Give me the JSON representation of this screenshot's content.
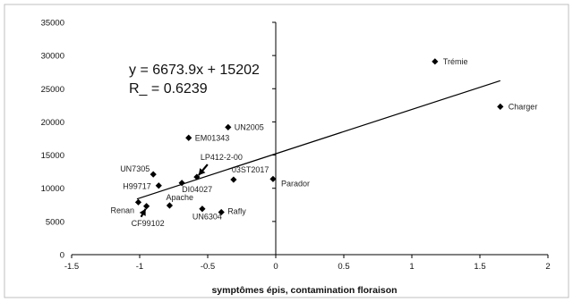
{
  "chart_data": {
    "type": "scatter",
    "title": "",
    "xlabel": "symptômes  épis, contamination floraison",
    "ylabel": "",
    "xlim": [
      -1.5,
      2
    ],
    "ylim": [
      0,
      35000
    ],
    "x_ticks": [
      "-1.5",
      "-1",
      "-0.5",
      "0",
      "0.5",
      "1",
      "1.5",
      "2"
    ],
    "y_ticks": [
      "0",
      "5000",
      "10000",
      "15000",
      "20000",
      "25000",
      "30000",
      "35000"
    ],
    "grid": false,
    "legend": "none",
    "points": [
      {
        "label": "Trémie",
        "x": 1.17,
        "y": 29100
      },
      {
        "label": "Charger",
        "x": 1.65,
        "y": 22300
      },
      {
        "label": "UN2005",
        "x": -0.35,
        "y": 19200
      },
      {
        "label": "EM01343",
        "x": -0.64,
        "y": 17600
      },
      {
        "label": "UN7305",
        "x": -0.9,
        "y": 12100
      },
      {
        "label": "LP412-2-00",
        "x": -0.58,
        "y": 11700
      },
      {
        "label": "H99717",
        "x": -0.86,
        "y": 10400
      },
      {
        "label": "DI04027",
        "x": -0.69,
        "y": 10800
      },
      {
        "label": "03ST2017",
        "x": -0.31,
        "y": 11300
      },
      {
        "label": "Parador",
        "x": -0.02,
        "y": 11400
      },
      {
        "label": "Apache",
        "x": -0.78,
        "y": 7400
      },
      {
        "label": "Renan",
        "x": -1.01,
        "y": 7900
      },
      {
        "label": "CF99102",
        "x": -0.95,
        "y": 7300
      },
      {
        "label": "UN6304",
        "x": -0.54,
        "y": 6900
      },
      {
        "label": "Rafly",
        "x": -0.4,
        "y": 6400
      }
    ],
    "trendline": {
      "slope": 6673.9,
      "intercept": 15202,
      "x_range": [
        -1.02,
        1.65
      ],
      "equation": "y = 6673.9x + 15202",
      "r_squared": "R_ = 0.6239"
    },
    "marker_color": "#000000",
    "line_color": "#000000"
  }
}
